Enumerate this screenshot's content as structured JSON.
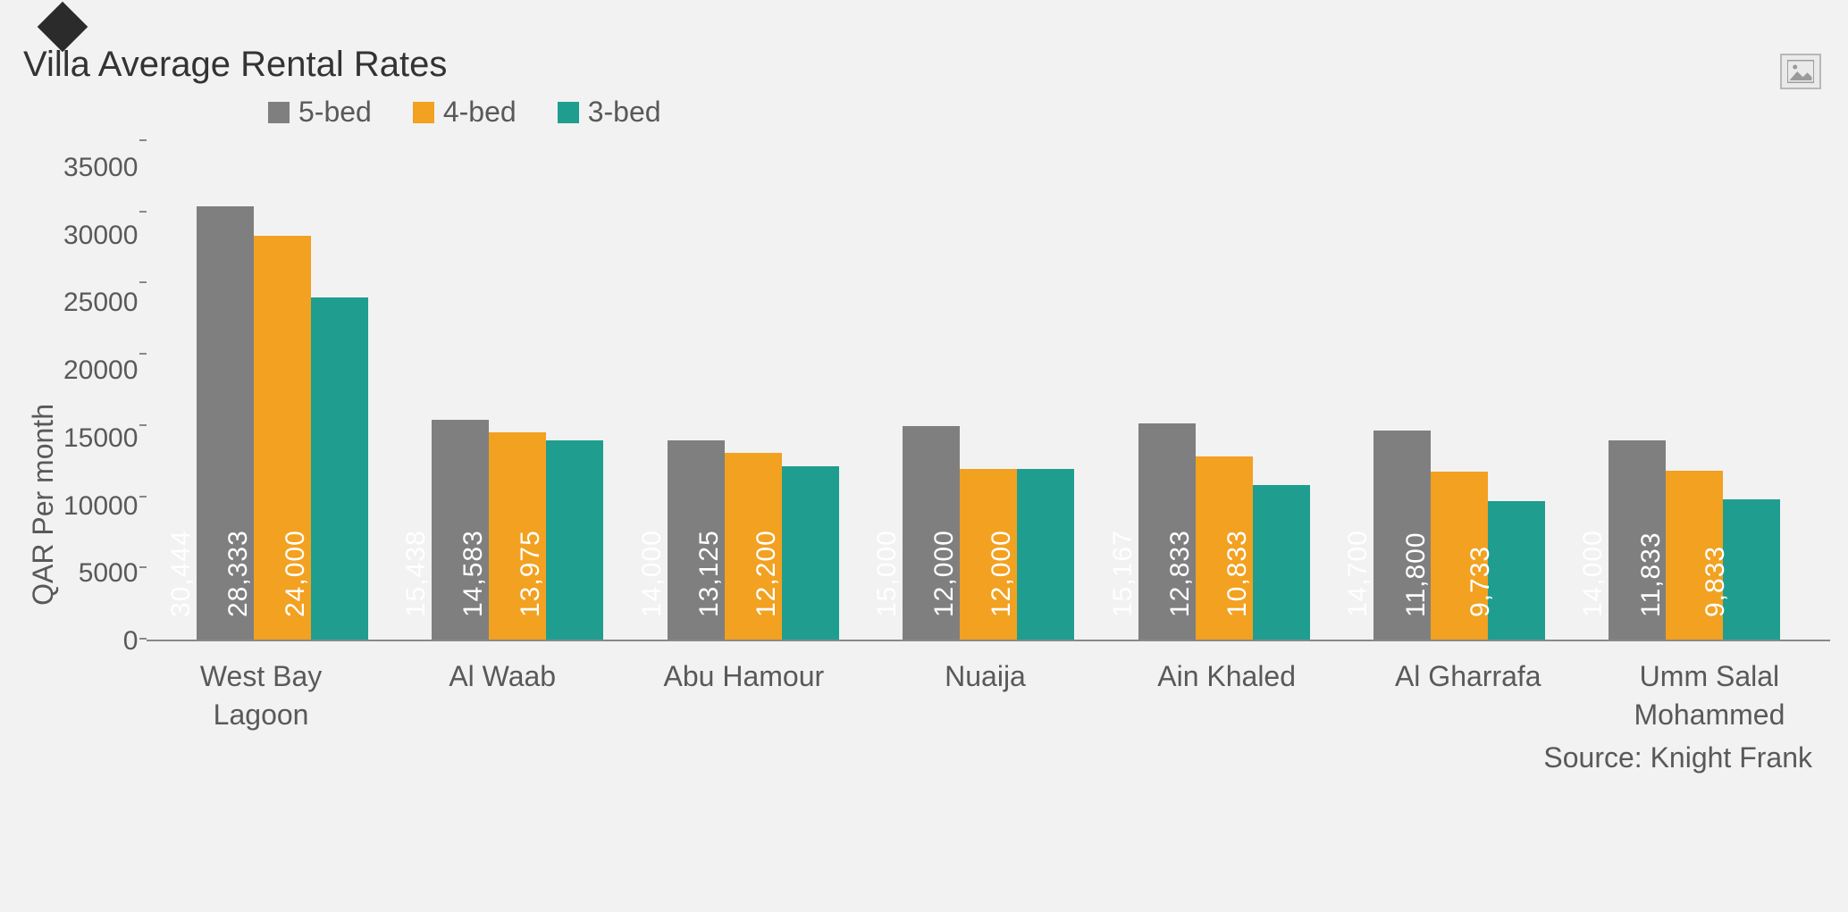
{
  "title": "Villa Average Rental Rates",
  "source": "Source: Knight Frank",
  "chart": {
    "type": "bar",
    "ylabel": "QAR Per month",
    "ylim": [
      0,
      35000
    ],
    "ytick_step": 5000,
    "yticks": [
      35000,
      30000,
      25000,
      20000,
      15000,
      10000,
      5000,
      0
    ],
    "background_color": "#f2f2f2",
    "axis_color": "#888888",
    "text_color": "#595959",
    "title_fontsize": 40,
    "label_fontsize": 32,
    "tick_fontsize": 30,
    "bar_label_fontsize": 30,
    "bar_label_color": "#ffffff",
    "legend_position": "top-left",
    "series": [
      {
        "name": "5-bed",
        "color": "#7f7f7f"
      },
      {
        "name": "4-bed",
        "color": "#f2a121"
      },
      {
        "name": "3-bed",
        "color": "#1f9e8f"
      }
    ],
    "categories": [
      "West Bay Lagoon",
      "Al Waab",
      "Abu Hamour",
      "Nuaija",
      "Ain Khaled",
      "Al Gharrafa",
      "Umm Salal Mohammed"
    ],
    "values": {
      "5-bed": [
        30444,
        15438,
        14000,
        15000,
        15167,
        14700,
        14000
      ],
      "4-bed": [
        28333,
        14583,
        13125,
        12000,
        12833,
        11800,
        11833
      ],
      "3-bed": [
        24000,
        13975,
        12200,
        12000,
        10833,
        9733,
        9833
      ]
    },
    "value_labels": {
      "5-bed": [
        "30,444",
        "15,438",
        "14,000",
        "15,000",
        "15,167",
        "14,700",
        "14,000"
      ],
      "4-bed": [
        "28,333",
        "14,583",
        "13,125",
        "12,000",
        "12,833",
        "11,800",
        "11,833"
      ],
      "3-bed": [
        "24,000",
        "13,975",
        "12,200",
        "12,000",
        "10,833",
        "9,733",
        "9,833"
      ]
    }
  },
  "icons": {
    "placeholder": "image-placeholder-icon"
  }
}
